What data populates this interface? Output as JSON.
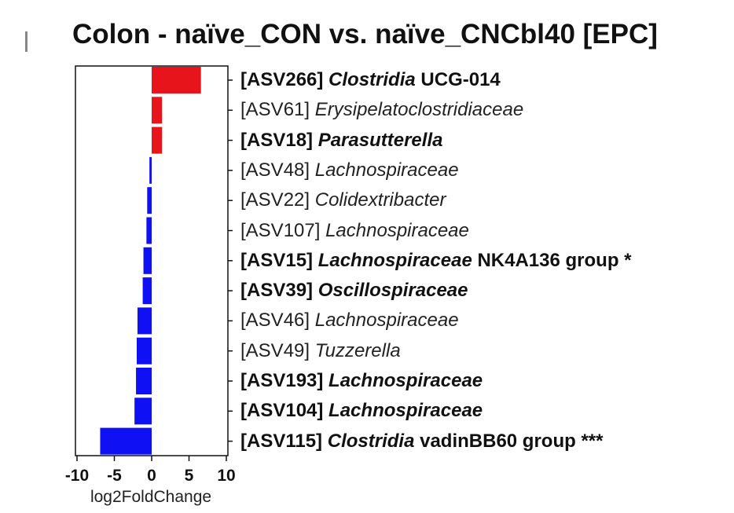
{
  "chart_data": {
    "type": "bar",
    "orientation": "horizontal",
    "title": "Colon - naïve_CON vs. naïve_CNCbl40 [EPC]",
    "xlabel": "log2FoldChange",
    "xlim": [
      -10,
      10
    ],
    "xticks": [
      "-10",
      "-5",
      "0",
      "5",
      "10"
    ],
    "grid": false,
    "legend": "none",
    "colors": {
      "positive": "#e8141c",
      "negative": "#1010f5"
    },
    "categories": [
      {
        "asv": "[ASV266]",
        "taxon": "Clostridia",
        "suffix": " UCG-014",
        "bold": true
      },
      {
        "asv": "[ASV61]",
        "taxon": "Erysipelatoclostridiaceae",
        "suffix": "",
        "bold": false
      },
      {
        "asv": "[ASV18]",
        "taxon": "Parasutterella",
        "suffix": "",
        "bold": true
      },
      {
        "asv": "[ASV48]",
        "taxon": "Lachnospiraceae",
        "suffix": "",
        "bold": false
      },
      {
        "asv": "[ASV22]",
        "taxon": "Colidextribacter",
        "suffix": "",
        "bold": false
      },
      {
        "asv": "[ASV107]",
        "taxon": "Lachnospiraceae",
        "suffix": "",
        "bold": false
      },
      {
        "asv": "[ASV15]",
        "taxon": "Lachnospiraceae",
        "suffix": " NK4A136 group *",
        "bold": true
      },
      {
        "asv": "[ASV39]",
        "taxon": "Oscillospiraceae",
        "suffix": "",
        "bold": true
      },
      {
        "asv": "[ASV46]",
        "taxon": "Lachnospiraceae",
        "suffix": "",
        "bold": false
      },
      {
        "asv": "[ASV49]",
        "taxon": "Tuzzerella",
        "suffix": "",
        "bold": false
      },
      {
        "asv": "[ASV193]",
        "taxon": "Lachnospiraceae",
        "suffix": "",
        "bold": true
      },
      {
        "asv": "[ASV104]",
        "taxon": "Lachnospiraceae",
        "suffix": "",
        "bold": true
      },
      {
        "asv": "[ASV115]",
        "taxon": "Clostridia",
        "suffix": " vadinBB60 group ***",
        "bold": true
      }
    ],
    "values": [
      6.6,
      1.4,
      1.4,
      -0.3,
      -0.6,
      -0.7,
      -1.1,
      -1.2,
      -1.9,
      -2.0,
      -2.1,
      -2.3,
      -6.9
    ]
  }
}
